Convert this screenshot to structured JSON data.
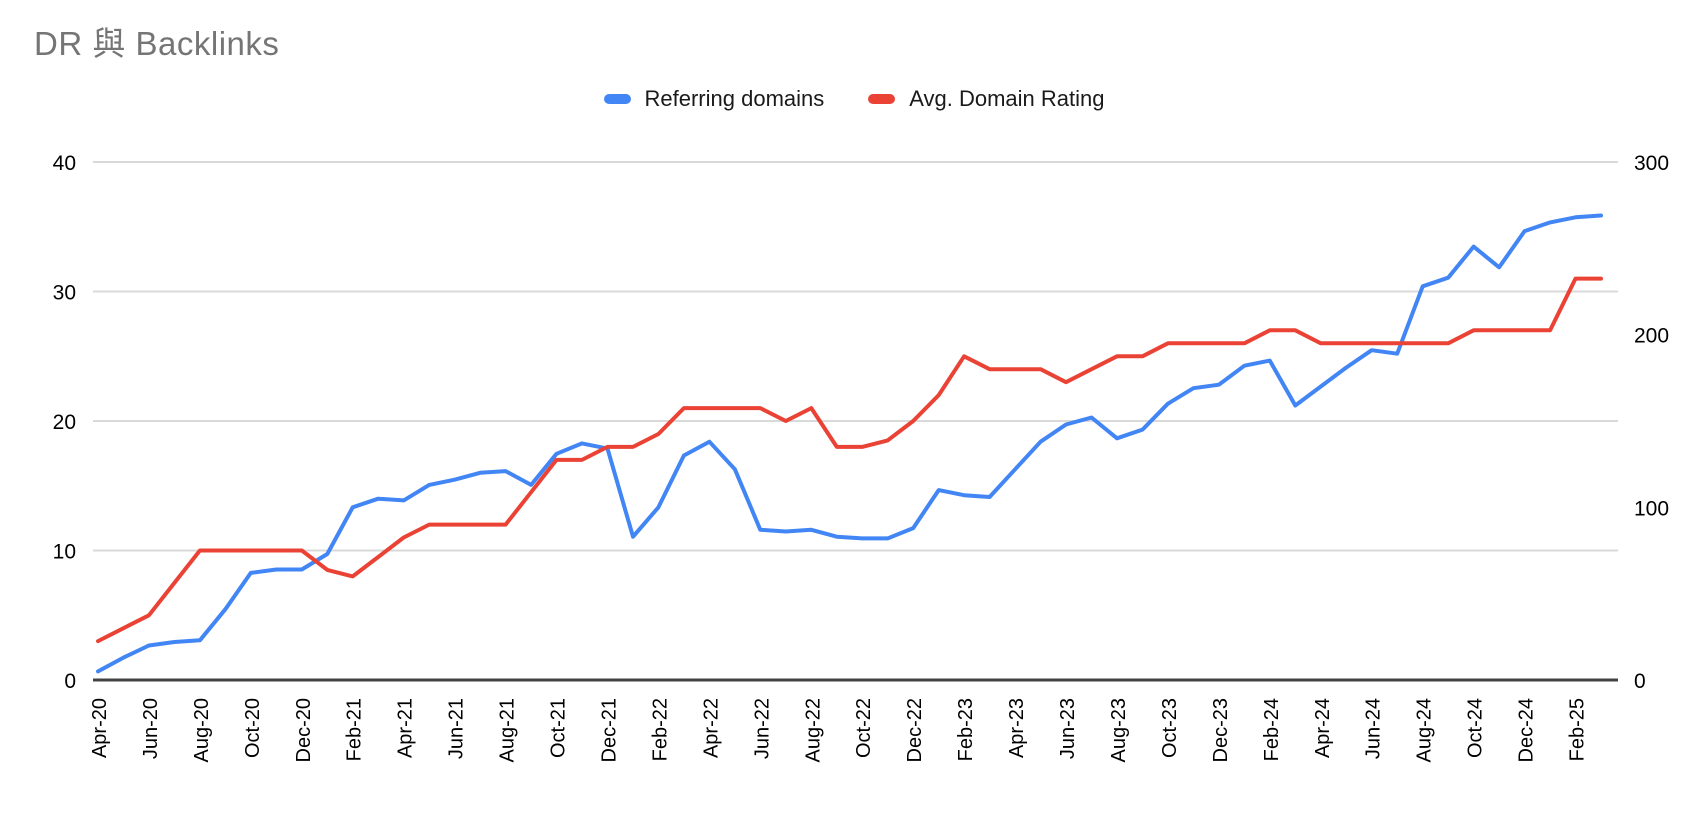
{
  "title": "DR 與 Backlinks",
  "colors": {
    "series_blue": "#4285f4",
    "series_red": "#ea4335",
    "title_gray": "#757575",
    "gridline": "#d9d9d9",
    "axis_line": "#424242",
    "tick_label": "#000000"
  },
  "legend": {
    "items": [
      {
        "label": "Referring domains",
        "color": "#4285f4"
      },
      {
        "label": "Avg. Domain Rating",
        "color": "#ea4335"
      }
    ]
  },
  "chart_data": {
    "type": "line",
    "title": "DR 與 Backlinks",
    "grid": true,
    "legend_position": "top",
    "x": [
      "Apr-20",
      "May-20",
      "Jun-20",
      "Jul-20",
      "Aug-20",
      "Sep-20",
      "Oct-20",
      "Nov-20",
      "Dec-20",
      "Jan-21",
      "Feb-21",
      "Mar-21",
      "Apr-21",
      "May-21",
      "Jun-21",
      "Jul-21",
      "Aug-21",
      "Sep-21",
      "Oct-21",
      "Nov-21",
      "Dec-21",
      "Jan-22",
      "Feb-22",
      "Mar-22",
      "Apr-22",
      "May-22",
      "Jun-22",
      "Jul-22",
      "Aug-22",
      "Sep-22",
      "Oct-22",
      "Nov-22",
      "Dec-22",
      "Jan-23",
      "Feb-23",
      "Mar-23",
      "Apr-23",
      "May-23",
      "Jun-23",
      "Jul-23",
      "Aug-23",
      "Sep-23",
      "Oct-23",
      "Nov-23",
      "Dec-23",
      "Jan-24",
      "Feb-24",
      "Mar-24",
      "Apr-24",
      "May-24",
      "Jun-24",
      "Jul-24",
      "Aug-24",
      "Sep-24",
      "Oct-24",
      "Nov-24",
      "Dec-24",
      "Jan-25",
      "Feb-25",
      "Mar-25"
    ],
    "x_tick_labels": [
      "Apr-20",
      "Jun-20",
      "Aug-20",
      "Oct-20",
      "Dec-20",
      "Feb-21",
      "Apr-21",
      "Jun-21",
      "Aug-21",
      "Oct-21",
      "Dec-21",
      "Feb-22",
      "Apr-22",
      "Jun-22",
      "Aug-22",
      "Oct-22",
      "Dec-22",
      "Feb-23",
      "Apr-23",
      "Jun-23",
      "Aug-23",
      "Oct-23",
      "Dec-23",
      "Feb-24",
      "Apr-24",
      "Jun-24",
      "Aug-24",
      "Oct-24",
      "Dec-24",
      "Feb-25"
    ],
    "left_axis": {
      "ticks": [
        0,
        10,
        20,
        30,
        40
      ],
      "range": [
        0,
        40
      ]
    },
    "right_axis": {
      "ticks": [
        0,
        100,
        200,
        300
      ],
      "range": [
        0,
        300
      ]
    },
    "series": [
      {
        "name": "Referring domains",
        "axis": "right",
        "color": "#4285f4",
        "values": [
          5,
          13,
          20,
          22,
          23,
          41,
          62,
          64,
          64,
          73,
          100,
          105,
          104,
          113,
          116,
          120,
          121,
          113,
          131,
          137,
          134,
          83,
          100,
          130,
          138,
          122,
          87,
          86,
          87,
          83,
          82,
          82,
          88,
          110,
          107,
          106,
          122,
          138,
          148,
          152,
          140,
          145,
          160,
          169,
          171,
          182,
          185,
          159,
          170,
          181,
          191,
          189,
          228,
          233,
          251,
          239,
          260,
          265,
          268,
          269
        ]
      },
      {
        "name": "Avg. Domain Rating",
        "axis": "left",
        "color": "#ea4335",
        "values": [
          3,
          4,
          5,
          7.5,
          10,
          10,
          10,
          10,
          10,
          8.5,
          8,
          9.5,
          11,
          12,
          12,
          12,
          12,
          14.5,
          17,
          17,
          18,
          18,
          19,
          21,
          21,
          21,
          21,
          20,
          21,
          18,
          18,
          18.5,
          20,
          22,
          25,
          24,
          24,
          24,
          23,
          24,
          25,
          25,
          26,
          26,
          26,
          26,
          27,
          27,
          26,
          26,
          26,
          26,
          26,
          26,
          27,
          27,
          27,
          27,
          31,
          31
        ]
      }
    ]
  }
}
